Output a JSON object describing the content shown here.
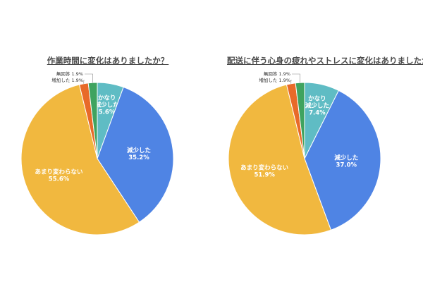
{
  "chart_data": [
    {
      "type": "pie",
      "title": "作業時間に変化はありましたか？",
      "slices": [
        {
          "label": "かなり減少した",
          "value": 5.6,
          "value_label": "5.6%",
          "color": "#5fbcc4"
        },
        {
          "label": "減少した",
          "value": 35.2,
          "value_label": "35.2%",
          "color": "#4f84e4"
        },
        {
          "label": "あまり変わらない",
          "value": 55.6,
          "value_label": "55.6%",
          "color": "#f1b83f"
        },
        {
          "label": "増加した",
          "value": 1.9,
          "value_label": "1.9%",
          "color": "#e86a29"
        },
        {
          "label": "無回答",
          "value": 1.9,
          "value_label": "1.9%",
          "color": "#3fa35f"
        }
      ]
    },
    {
      "type": "pie",
      "title": "配送に伴う心身の疲れやストレスに変化はありましたか？",
      "slices": [
        {
          "label": "かなり減少した",
          "value": 7.4,
          "value_label": "7.4%",
          "color": "#5fbcc4"
        },
        {
          "label": "減少した",
          "value": 37.0,
          "value_label": "37.0%",
          "color": "#4f84e4"
        },
        {
          "label": "あまり変わらない",
          "value": 51.9,
          "value_label": "51.9%",
          "color": "#f1b83f"
        },
        {
          "label": "増加した",
          "value": 1.9,
          "value_label": "1.9%",
          "color": "#e86a29"
        },
        {
          "label": "無回答",
          "value": 1.9,
          "value_label": "1.9%",
          "color": "#3fa35f"
        }
      ]
    }
  ]
}
